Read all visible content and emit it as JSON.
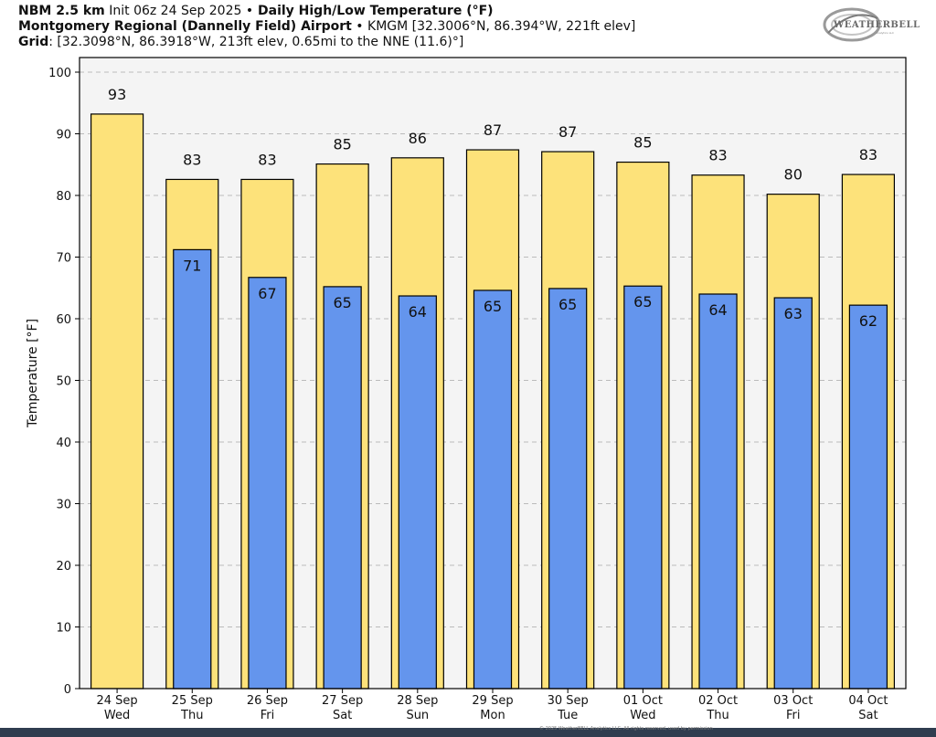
{
  "header": {
    "line1": {
      "model": "NBM 2.5 km",
      "init": " Init 06z 24 Sep 2025 ",
      "bullet": "•",
      "product": " Daily High/Low Temperature (°F)"
    },
    "line2": {
      "station": "Montgomery Regional (Dannelly Field) Airport",
      "bullet": " • ",
      "station_info": "KMGM [32.3006°N, 86.394°W, 221ft elev]"
    },
    "line3": {
      "grid_label": "Grid",
      "grid_info": ": [32.3098°N, 86.3918°W, 213ft elev, 0.65mi to the NNE (11.6)°]"
    }
  },
  "logo": {
    "text": "WEATHERBELL",
    "sub": "Analytics LLC"
  },
  "copyright": "© 2025 WeatherBELL Analytics LLC. All rights reserved, used by permission",
  "colors": {
    "high": "#fde27a",
    "low": "#6495ed",
    "plot_bg": "#f4f4f4",
    "grid": "#bbbbbb"
  },
  "chart_data": {
    "type": "bar",
    "ylabel": "Temperature [°F]",
    "ylim": [
      0,
      100
    ],
    "yticks": [
      0,
      10,
      20,
      30,
      40,
      50,
      60,
      70,
      80,
      90,
      100
    ],
    "grid": true,
    "categories": [
      [
        "24 Sep",
        "Wed"
      ],
      [
        "25 Sep",
        "Thu"
      ],
      [
        "26 Sep",
        "Fri"
      ],
      [
        "27 Sep",
        "Sat"
      ],
      [
        "28 Sep",
        "Sun"
      ],
      [
        "29 Sep",
        "Mon"
      ],
      [
        "30 Sep",
        "Tue"
      ],
      [
        "01 Oct",
        "Wed"
      ],
      [
        "02 Oct",
        "Thu"
      ],
      [
        "03 Oct",
        "Fri"
      ],
      [
        "04 Oct",
        "Sat"
      ]
    ],
    "series": [
      {
        "values": [
          93.2,
          82.6,
          82.6,
          85.1,
          86.1,
          87.4,
          87.1,
          85.4,
          83.3,
          80.2,
          83.4
        ],
        "labels": [
          93,
          83,
          83,
          85,
          86,
          87,
          87,
          85,
          83,
          80,
          83
        ]
      },
      {
        "values": [
          null,
          71.2,
          66.7,
          65.2,
          63.7,
          64.6,
          64.9,
          65.3,
          64.0,
          63.4,
          62.2
        ],
        "labels": [
          null,
          71,
          67,
          65,
          64,
          65,
          65,
          65,
          64,
          63,
          62
        ]
      }
    ]
  }
}
